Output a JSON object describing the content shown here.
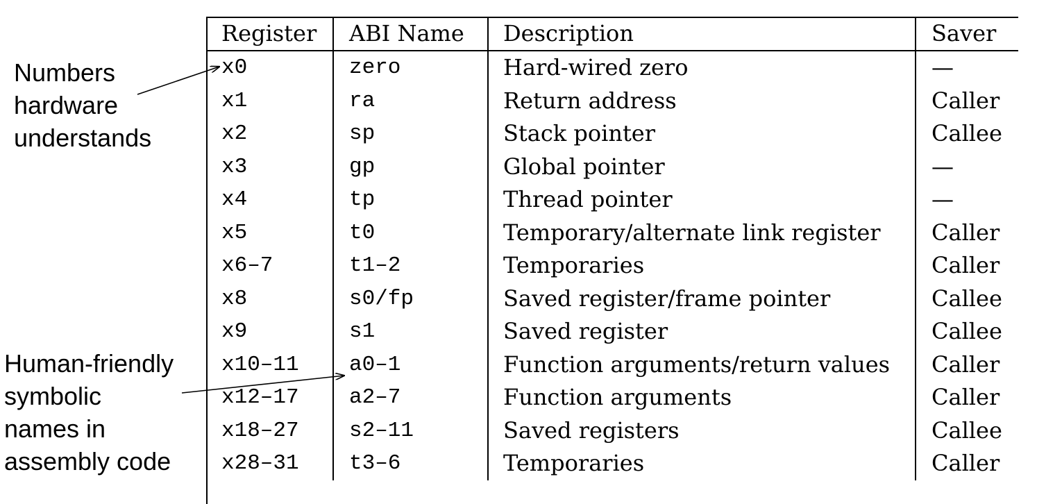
{
  "annotations": {
    "top": [
      "Numbers",
      "hardware",
      "understands"
    ],
    "bottom": [
      "Human-friendly",
      "symbolic",
      "names in",
      "assembly code"
    ]
  },
  "table": {
    "headers": [
      "Register",
      "ABI Name",
      "Description",
      "Saver"
    ],
    "rows": [
      [
        "x0",
        "zero",
        "Hard-wired zero",
        "—"
      ],
      [
        "x1",
        "ra",
        "Return address",
        "Caller"
      ],
      [
        "x2",
        "sp",
        "Stack pointer",
        "Callee"
      ],
      [
        "x3",
        "gp",
        "Global pointer",
        "—"
      ],
      [
        "x4",
        "tp",
        "Thread pointer",
        "—"
      ],
      [
        "x5",
        "t0",
        "Temporary/alternate link register",
        "Caller"
      ],
      [
        "x6–7",
        "t1–2",
        "Temporaries",
        "Caller"
      ],
      [
        "x8",
        "s0/fp",
        "Saved register/frame pointer",
        "Callee"
      ],
      [
        "x9",
        "s1",
        "Saved register",
        "Callee"
      ],
      [
        "x10–11",
        "a0–1",
        "Function arguments/return values",
        "Caller"
      ],
      [
        "x12–17",
        "a2–7",
        "Function arguments",
        "Caller"
      ],
      [
        "x18–27",
        "s2–11",
        "Saved registers",
        "Callee"
      ],
      [
        "x28–31",
        "t3–6",
        "Temporaries",
        "Caller"
      ]
    ]
  }
}
